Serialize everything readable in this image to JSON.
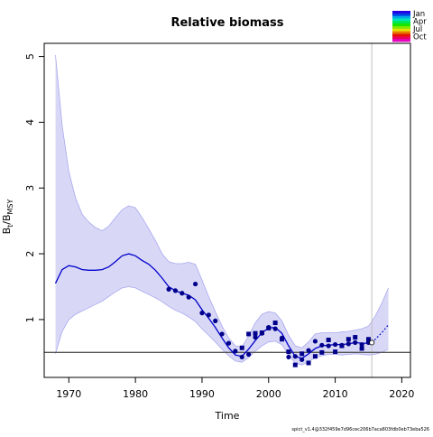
{
  "chart_data": {
    "type": "line",
    "title": "Relative biomass",
    "xlabel": "Time",
    "ylabel": {
      "base": "B",
      "sub1": "t",
      "sep": "/B",
      "sub2": "MSY"
    },
    "xlim": [
      1966.3,
      2021.3
    ],
    "ylim": [
      0.12,
      5.2
    ],
    "xticks": [
      1970,
      1980,
      1990,
      2000,
      2010,
      2020
    ],
    "yticks": [
      1,
      2,
      3,
      4,
      5
    ],
    "reference_line_y": 0.5,
    "vertical_line_x": 2015.5,
    "grid": false,
    "legend_position": "top-right",
    "legend": [
      "Jan",
      "Apr",
      "Jul",
      "Oct"
    ],
    "colors": {
      "estimate": "#0000CD",
      "ci_fill": "#D8D8F6",
      "ci_border": "#A8A8F0",
      "reference": "#555555",
      "vline": "#BFBFBF",
      "obs_circle": "#00008B",
      "obs_square": "#00008B"
    },
    "footnote": "spict_v1.4@332f459e7d96cec206b7aca803fdb0eb73eba526",
    "estimate": {
      "x": [
        1968,
        1969,
        1970,
        1971,
        1972,
        1973,
        1974,
        1975,
        1976,
        1977,
        1978,
        1979,
        1980,
        1981,
        1982,
        1983,
        1984,
        1985,
        1986,
        1987,
        1988,
        1989,
        1990,
        1991,
        1992,
        1993,
        1994,
        1995,
        1996,
        1997,
        1998,
        1999,
        2000,
        2001,
        2002,
        2003,
        2004,
        2005,
        2006,
        2007,
        2008,
        2009,
        2010,
        2011,
        2012,
        2013,
        2014,
        2015,
        2015.5
      ],
      "y": [
        1.55,
        1.76,
        1.82,
        1.8,
        1.76,
        1.75,
        1.75,
        1.76,
        1.8,
        1.88,
        1.97,
        2.0,
        1.97,
        1.9,
        1.84,
        1.75,
        1.63,
        1.5,
        1.44,
        1.4,
        1.37,
        1.3,
        1.15,
        1.02,
        0.88,
        0.72,
        0.57,
        0.46,
        0.44,
        0.55,
        0.68,
        0.8,
        0.87,
        0.88,
        0.79,
        0.6,
        0.44,
        0.41,
        0.48,
        0.56,
        0.6,
        0.61,
        0.62,
        0.62,
        0.63,
        0.65,
        0.64,
        0.64,
        0.65
      ]
    },
    "forecast": {
      "x": [
        2015.5,
        2016,
        2017,
        2018
      ],
      "y": [
        0.65,
        0.7,
        0.8,
        0.92
      ]
    },
    "ci_upper": {
      "x": [
        1968,
        1969,
        1970,
        1971,
        1972,
        1973,
        1974,
        1975,
        1976,
        1977,
        1978,
        1979,
        1980,
        1981,
        1982,
        1983,
        1984,
        1985,
        1986,
        1987,
        1988,
        1989,
        1990,
        1991,
        1992,
        1993,
        1994,
        1995,
        1996,
        1997,
        1998,
        1999,
        2000,
        2001,
        2002,
        2003,
        2004,
        2005,
        2006,
        2007,
        2008,
        2009,
        2010,
        2011,
        2012,
        2013,
        2014,
        2015,
        2016,
        2017,
        2018
      ],
      "y": [
        5.02,
        3.95,
        3.25,
        2.85,
        2.6,
        2.48,
        2.4,
        2.35,
        2.42,
        2.55,
        2.67,
        2.73,
        2.7,
        2.55,
        2.38,
        2.2,
        2.0,
        1.88,
        1.85,
        1.85,
        1.87,
        1.84,
        1.6,
        1.35,
        1.12,
        0.9,
        0.72,
        0.6,
        0.58,
        0.75,
        0.95,
        1.08,
        1.12,
        1.1,
        0.98,
        0.76,
        0.6,
        0.57,
        0.66,
        0.78,
        0.8,
        0.8,
        0.8,
        0.81,
        0.82,
        0.84,
        0.86,
        0.9,
        1.05,
        1.25,
        1.48
      ]
    },
    "ci_lower": {
      "x": [
        1968,
        1969,
        1970,
        1971,
        1972,
        1973,
        1974,
        1975,
        1976,
        1977,
        1978,
        1979,
        1980,
        1981,
        1982,
        1983,
        1984,
        1985,
        1986,
        1987,
        1988,
        1989,
        1990,
        1991,
        1992,
        1993,
        1994,
        1995,
        1996,
        1997,
        1998,
        1999,
        2000,
        2001,
        2002,
        2003,
        2004,
        2005,
        2006,
        2007,
        2008,
        2009,
        2010,
        2011,
        2012,
        2013,
        2014,
        2015,
        2016,
        2017,
        2018
      ],
      "y": [
        0.48,
        0.82,
        1.0,
        1.08,
        1.13,
        1.18,
        1.23,
        1.28,
        1.35,
        1.42,
        1.48,
        1.5,
        1.48,
        1.43,
        1.38,
        1.33,
        1.27,
        1.2,
        1.14,
        1.1,
        1.04,
        0.97,
        0.86,
        0.76,
        0.66,
        0.55,
        0.45,
        0.37,
        0.35,
        0.42,
        0.52,
        0.6,
        0.66,
        0.67,
        0.62,
        0.46,
        0.34,
        0.31,
        0.36,
        0.42,
        0.45,
        0.47,
        0.47,
        0.46,
        0.47,
        0.48,
        0.47,
        0.46,
        0.47,
        0.5,
        0.55
      ]
    },
    "observations_index1": {
      "marker": "circle",
      "x": [
        1985,
        1986,
        1987,
        1988,
        1989,
        1990,
        1991,
        1992,
        1993,
        1994,
        1995,
        1996,
        1997,
        1998,
        1999,
        2000,
        2001,
        2002,
        2003,
        2004,
        2005,
        2006,
        2007,
        2008,
        2009,
        2010,
        2011,
        2012,
        2013,
        2014,
        2015
      ],
      "y": [
        1.46,
        1.44,
        1.4,
        1.34,
        1.54,
        1.1,
        1.07,
        0.98,
        0.78,
        0.64,
        0.52,
        0.43,
        0.47,
        0.73,
        0.79,
        0.88,
        0.86,
        0.72,
        0.43,
        0.44,
        0.39,
        0.53,
        0.67,
        0.61,
        0.6,
        0.62,
        0.61,
        0.63,
        0.65,
        0.62,
        0.65
      ]
    },
    "observations_index2": {
      "marker": "square",
      "x": [
        1996,
        1997,
        1998,
        1999,
        2000,
        2001,
        2002,
        2003,
        2004,
        2005,
        2006,
        2007,
        2008,
        2009,
        2010,
        2011,
        2012,
        2013,
        2014,
        2015
      ],
      "y": [
        0.57,
        0.78,
        0.79,
        0.8,
        0.87,
        0.95,
        0.7,
        0.51,
        0.31,
        0.48,
        0.34,
        0.44,
        0.5,
        0.69,
        0.51,
        0.6,
        0.7,
        0.73,
        0.56,
        0.7
      ]
    },
    "forecast_point": {
      "x": 2015.5,
      "y": 0.65
    }
  }
}
